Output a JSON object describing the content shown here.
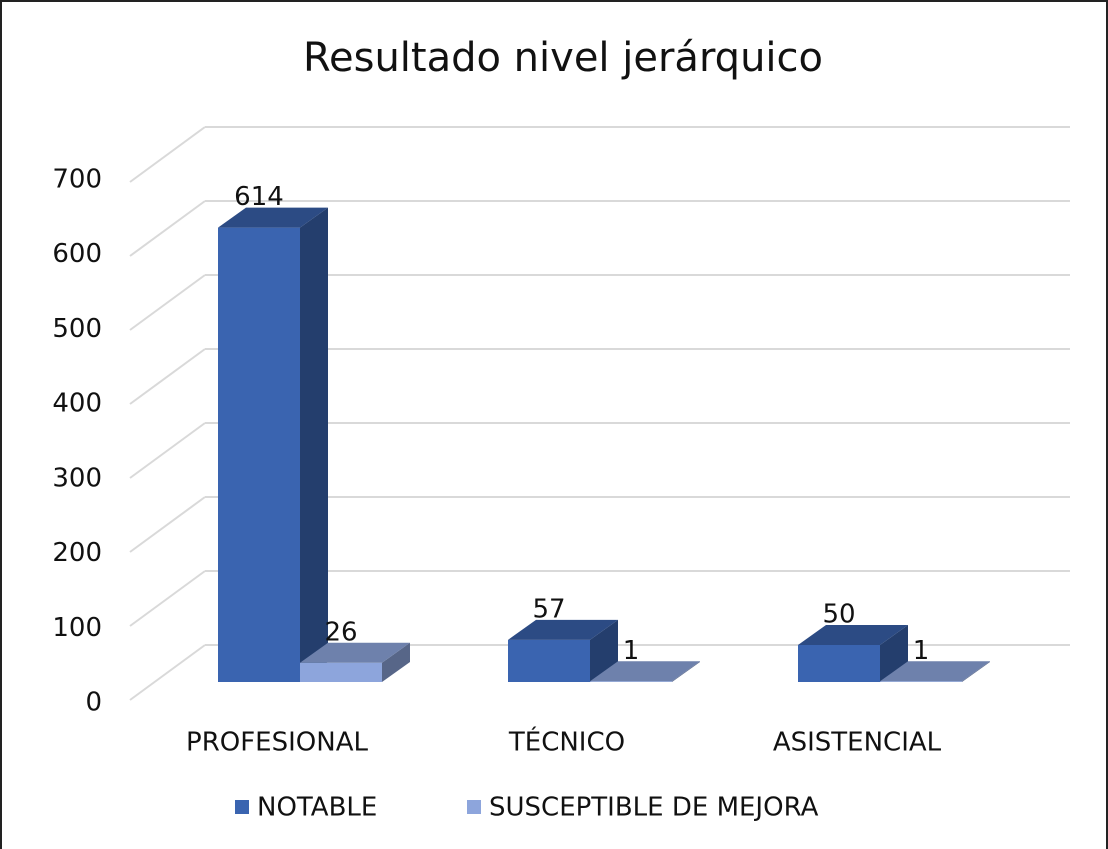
{
  "chart_data": {
    "type": "bar3d",
    "title": "Resultado nivel jerárquico",
    "categories": [
      "PROFESIONAL",
      "TÉCNICO",
      "ASISTENCIAL"
    ],
    "series": [
      {
        "name": "NOTABLE",
        "color": "#3a64b0",
        "values": [
          614,
          57,
          50
        ]
      },
      {
        "name": "SUSCEPTIBLE DE MEJORA",
        "color": "#8da5dc",
        "values": [
          26,
          1,
          1
        ]
      }
    ],
    "ylim": [
      0,
      700
    ],
    "yticks": [
      0,
      100,
      200,
      300,
      400,
      500,
      600,
      700
    ],
    "grid": true,
    "legend": "bottom"
  }
}
